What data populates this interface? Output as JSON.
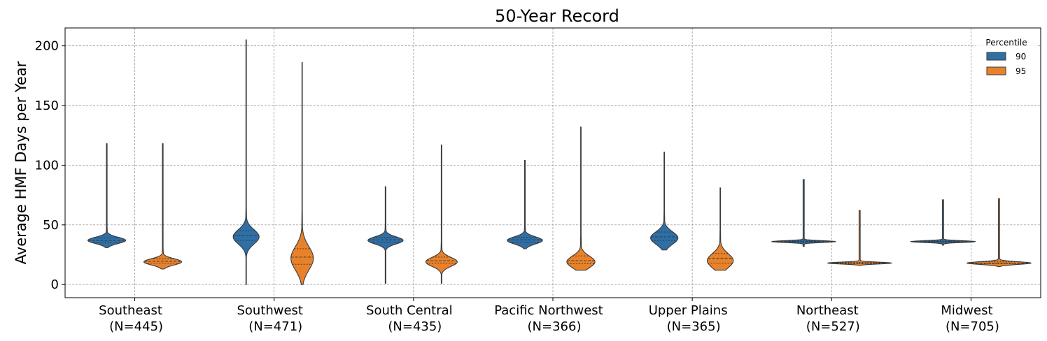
{
  "chart_data": {
    "type": "violin",
    "title": "50-Year Record",
    "xlabel": "",
    "ylabel": "Average HMF Days per Year",
    "ylim": [
      -11,
      215
    ],
    "yticks": [
      0,
      50,
      100,
      150,
      200
    ],
    "grid": true,
    "legend": {
      "title": "Percentile",
      "placement": "top-right"
    },
    "categories": [
      {
        "line1": "Southeast",
        "line2": "(N=445)"
      },
      {
        "line1": "Southwest",
        "line2": "(N=471)"
      },
      {
        "line1": "South Central",
        "line2": "(N=435)"
      },
      {
        "line1": "Pacific Northwest",
        "line2": "(N=366)"
      },
      {
        "line1": "Upper Plains",
        "line2": "(N=365)"
      },
      {
        "line1": "Northeast",
        "line2": "(N=527)"
      },
      {
        "line1": "Midwest",
        "line2": "(N=705)"
      }
    ],
    "series": [
      {
        "name": "90",
        "color": "#2f6fa6",
        "distributions": [
          {
            "min": 31,
            "q1": 35.5,
            "median": 37,
            "q3": 39,
            "max": 118,
            "mode": 37
          },
          {
            "min": 0,
            "q1": 37,
            "median": 41,
            "q3": 45,
            "max": 205,
            "mode": 40
          },
          {
            "min": 1,
            "q1": 35.5,
            "median": 37.5,
            "q3": 39.5,
            "max": 82,
            "mode": 37
          },
          {
            "min": 30,
            "q1": 35.5,
            "median": 37.5,
            "q3": 39.5,
            "max": 104,
            "mode": 37
          },
          {
            "min": 29,
            "q1": 37,
            "median": 40,
            "q3": 44,
            "max": 111,
            "mode": 39
          },
          {
            "min": 32,
            "q1": 35.5,
            "median": 36,
            "q3": 36.5,
            "max": 88,
            "mode": 36
          },
          {
            "min": 33,
            "q1": 35.5,
            "median": 36,
            "q3": 36.5,
            "max": 71,
            "mode": 36
          }
        ]
      },
      {
        "name": "95",
        "color": "#e8822a",
        "distributions": [
          {
            "min": 13,
            "q1": 18,
            "median": 19.5,
            "q3": 21.5,
            "max": 118,
            "mode": 19
          },
          {
            "min": 0,
            "q1": 17,
            "median": 23,
            "q3": 30,
            "max": 186,
            "mode": 22
          },
          {
            "min": 1,
            "q1": 18,
            "median": 20,
            "q3": 23,
            "max": 117,
            "mode": 19
          },
          {
            "min": 12,
            "q1": 17.5,
            "median": 20,
            "q3": 24,
            "max": 132,
            "mode": 19
          },
          {
            "min": 12,
            "q1": 18,
            "median": 22,
            "q3": 26,
            "max": 81,
            "mode": 20
          },
          {
            "min": 16,
            "q1": 17.5,
            "median": 18,
            "q3": 18.5,
            "max": 62,
            "mode": 18
          },
          {
            "min": 15,
            "q1": 17.5,
            "median": 18,
            "q3": 19,
            "max": 72,
            "mode": 18
          }
        ]
      }
    ]
  }
}
